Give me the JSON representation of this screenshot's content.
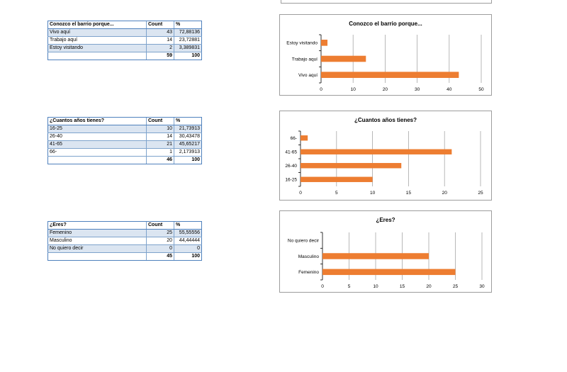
{
  "tables": [
    {
      "header": [
        "Conozco el barrio porque...",
        "Count",
        "%"
      ],
      "rows": [
        [
          "Vivo aquí",
          "43",
          "72,88136"
        ],
        [
          "Trabajo aquí",
          "14",
          "23,72881"
        ],
        [
          "Estoy visitando",
          "2",
          "3,389831"
        ]
      ],
      "total": [
        "",
        "59",
        "100"
      ]
    },
    {
      "header": [
        "¿Cuantos años tienes?",
        "Count",
        "%"
      ],
      "rows": [
        [
          "16-25",
          "10",
          "21,73913"
        ],
        [
          "26-40",
          "14",
          "30,43478"
        ],
        [
          "41-65",
          "21",
          "45,65217"
        ],
        [
          "66-",
          "1",
          "2,173913"
        ]
      ],
      "total": [
        "",
        "46",
        "100"
      ]
    },
    {
      "header": [
        "¿Eres?",
        "Count",
        "%"
      ],
      "rows": [
        [
          "Femenino",
          "25",
          "55,55556"
        ],
        [
          "Masculino",
          "20",
          "44,44444"
        ],
        [
          "No quiero decir",
          "0",
          "0"
        ]
      ],
      "total": [
        "",
        "45",
        "100"
      ]
    }
  ],
  "colors": {
    "bar": "#ed7d31",
    "grid": "#a6a6a6",
    "axis": "#000000",
    "table_border": "#4f81bd",
    "table_band": "#dbe5f1"
  },
  "chart_data": [
    {
      "type": "bar",
      "orientation": "horizontal",
      "title": "Conozco el barrio porque...",
      "categories": [
        "Vivo aquí",
        "Trabajo aquí",
        "Estoy visitando"
      ],
      "values": [
        43,
        14,
        2
      ],
      "xlim": [
        0,
        50
      ],
      "ticks": [
        0,
        10,
        20,
        30,
        40,
        50
      ],
      "grid": true,
      "legend": "none"
    },
    {
      "type": "bar",
      "orientation": "horizontal",
      "title": "¿Cuantos años tienes?",
      "categories": [
        "16-25",
        "26-40",
        "41-65",
        "66-"
      ],
      "values": [
        10,
        14,
        21,
        1
      ],
      "xlim": [
        0,
        25
      ],
      "ticks": [
        0,
        5,
        10,
        15,
        20,
        25
      ],
      "grid": true,
      "legend": "none"
    },
    {
      "type": "bar",
      "orientation": "horizontal",
      "title": "¿Eres?",
      "categories": [
        "Femenino",
        "Masculino",
        "No quiero decir"
      ],
      "values": [
        25,
        20,
        0
      ],
      "xlim": [
        0,
        30
      ],
      "ticks": [
        0,
        5,
        10,
        15,
        20,
        25,
        30
      ],
      "grid": true,
      "legend": "none"
    }
  ]
}
